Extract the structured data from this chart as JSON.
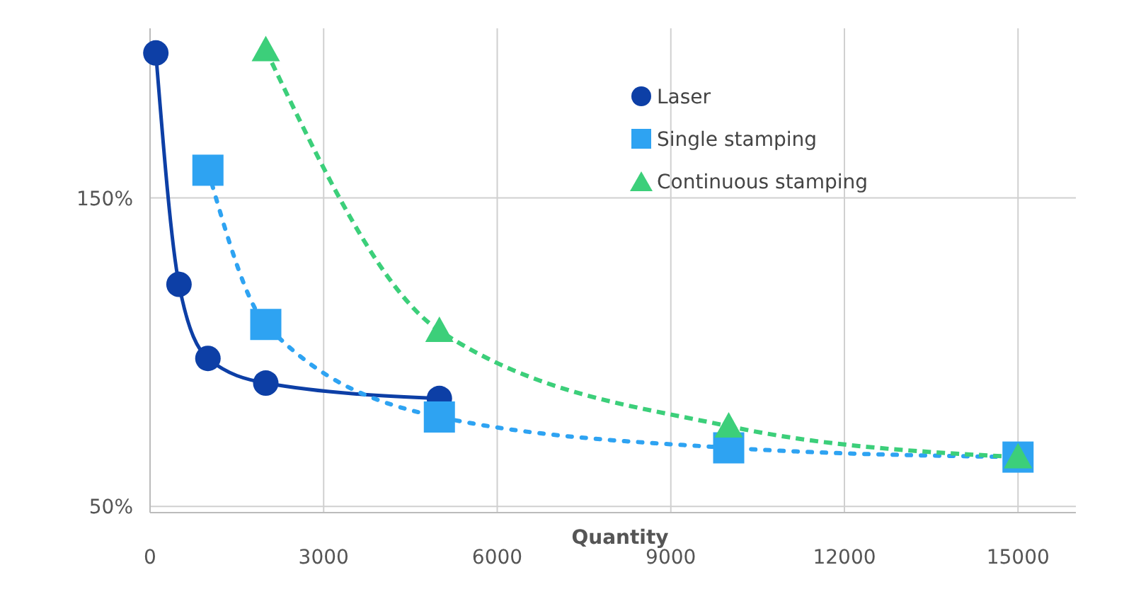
{
  "chart_data": {
    "type": "line",
    "xlabel": "Quantity",
    "xlim": [
      0,
      16000
    ],
    "ylim": [
      48,
      205
    ],
    "xticks": [
      0,
      3000,
      6000,
      9000,
      12000,
      15000
    ],
    "yticks": [
      {
        "value": 50,
        "label": "50%"
      },
      {
        "value": 150,
        "label": "150%"
      }
    ],
    "grid": true,
    "legend": "top right",
    "series": [
      {
        "name": "Laser",
        "color": "#0d3fa6",
        "marker": "circle",
        "line_style": "solid",
        "x": [
          100,
          500,
          1000,
          2000,
          5000
        ],
        "values": [
          197,
          122,
          98,
          90,
          85
        ]
      },
      {
        "name": "Single stamping",
        "color": "#2ea3f2",
        "marker": "square",
        "line_style": "dotted",
        "x": [
          1000,
          2000,
          5000,
          10000,
          15000
        ],
        "values": [
          159,
          109,
          79,
          69,
          66
        ]
      },
      {
        "name": "Continuous stamping",
        "color": "#3ccf7a",
        "marker": "triangle",
        "line_style": "dashed",
        "x": [
          2000,
          5000,
          10000,
          15000
        ],
        "values": [
          198,
          107,
          76,
          66
        ]
      }
    ]
  }
}
